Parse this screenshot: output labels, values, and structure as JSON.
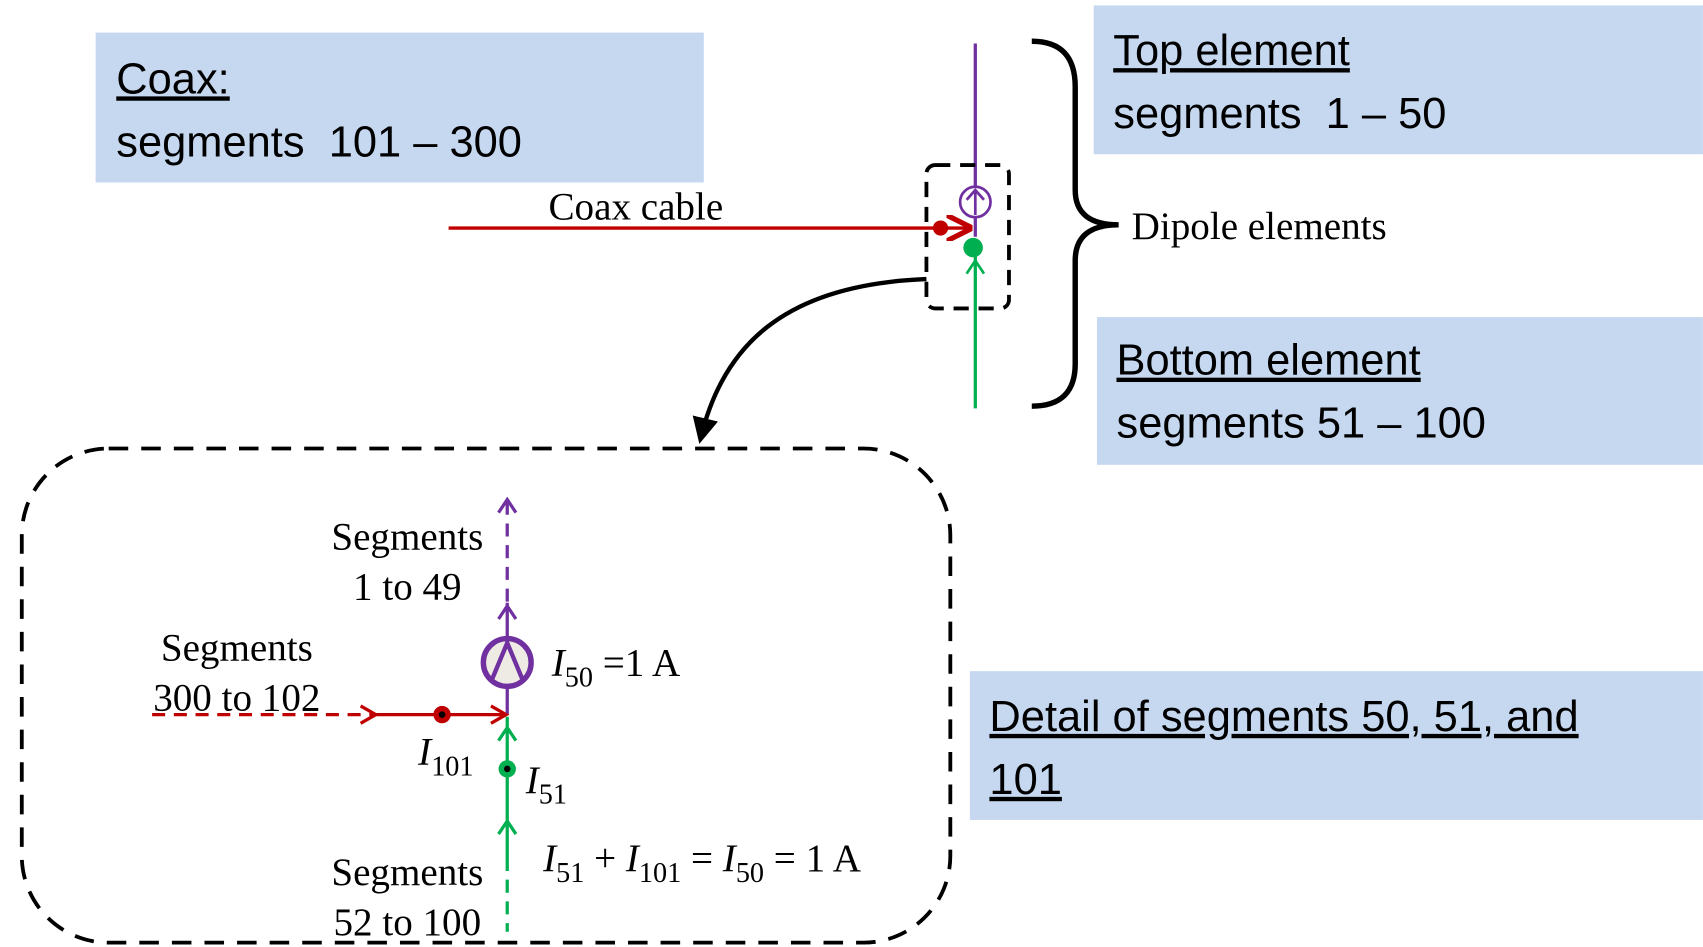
{
  "boxes": {
    "coax": {
      "title": "Coax:",
      "text": "segments  101 – 300"
    },
    "top": {
      "title": "Top element",
      "text": "segments  1 – 50"
    },
    "bottom": {
      "title": "Bottom element",
      "text": "segments 51 – 100"
    },
    "detail": {
      "lines": [
        "Detail of segments 50, 51, and",
        "101"
      ]
    }
  },
  "labels": {
    "coax_cable": "Coax cable",
    "dipole": "Dipole elements",
    "seg_top": [
      "Segments",
      "1 to 49"
    ],
    "seg_left": [
      "Segments",
      "300 to 102"
    ],
    "seg_bottom": [
      "Segments",
      "52 to 100"
    ]
  },
  "currents": {
    "i50": [
      "I",
      "50",
      " =1 A"
    ],
    "i101": [
      "I",
      "101"
    ],
    "i51": [
      "I",
      "51"
    ]
  },
  "equation": [
    "I",
    "51",
    " + ",
    "I",
    "101",
    " = ",
    "I",
    "50",
    " = 1 A"
  ]
}
